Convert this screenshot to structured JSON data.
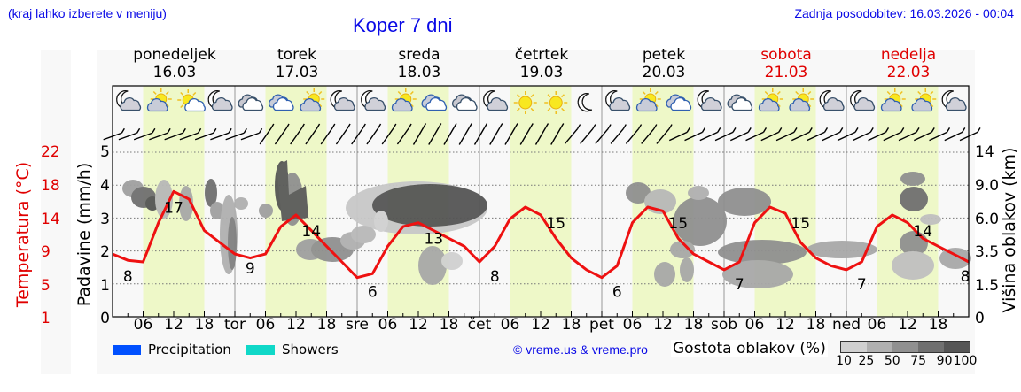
{
  "header": {
    "hint": "(kraj lahko izberete v meniju)",
    "title": "Koper 7 dni",
    "last_update": "Zadnja posodobitev: 16.03.2026 - 00:04"
  },
  "days": [
    {
      "name": "ponedeljek",
      "date": "16.03",
      "weekend": false
    },
    {
      "name": "torek",
      "date": "17.03",
      "weekend": false
    },
    {
      "name": "sreda",
      "date": "18.03",
      "weekend": false
    },
    {
      "name": "četrtek",
      "date": "19.03",
      "weekend": false
    },
    {
      "name": "petek",
      "date": "20.03",
      "weekend": false
    },
    {
      "name": "sobota",
      "date": "21.03",
      "weekend": true
    },
    {
      "name": "nedelja",
      "date": "22.03",
      "weekend": true
    }
  ],
  "icons": [
    "moon-cloud",
    "sun-cloud",
    "sun-small-cloud",
    "moon-cloud",
    "clouds",
    "clouds-blue",
    "sun-cloud",
    "moon-cloud",
    "moon-cloud",
    "sun-cloud",
    "clouds-blue",
    "clouds",
    "moon-cloud",
    "sun",
    "sun",
    "moon",
    "moon-cloud",
    "sun-cloud",
    "clouds-blue",
    "moon-cloud",
    "clouds",
    "sun-cloud",
    "sun-cloud",
    "moon-cloud",
    "moon-cloud",
    "sun-cloud",
    "sun-cloud",
    "moon-cloud"
  ],
  "axes": {
    "temp_label": "Temperatura (°C)",
    "temp_ticks": [
      "22",
      "18",
      "14",
      "9",
      "5",
      "1"
    ],
    "precip_label": "Padavine (mm/h)",
    "precip_ticks": [
      "5",
      "4",
      "3",
      "2",
      "1",
      "0"
    ],
    "cloud_label": "Višina oblakov (km)",
    "cloud_ticks": [
      "14",
      "9.0",
      "6.0",
      "3.5",
      "1.5",
      "0"
    ],
    "x_ticks": [
      "06",
      "12",
      "18",
      "tor",
      "06",
      "12",
      "18",
      "sre",
      "06",
      "12",
      "18",
      "čet",
      "06",
      "12",
      "18",
      "pet",
      "06",
      "12",
      "18",
      "sob",
      "06",
      "12",
      "18",
      "ned",
      "06",
      "12",
      "18"
    ]
  },
  "legend": {
    "precipitation": {
      "label": "Precipitation",
      "color": "#0050ff"
    },
    "showers": {
      "label": "Showers",
      "color": "#10d8c8"
    },
    "copyright": "© vreme.us & vreme.pro",
    "density_title": "Gostota oblakov (%)",
    "density_ticks": [
      "10",
      "25",
      "50",
      "75",
      "90",
      "100"
    ],
    "density_colors": [
      "#d0d0d0",
      "#b0b0b0",
      "#909090",
      "#707070",
      "#555555"
    ]
  },
  "colors": {
    "temperature": "#ee1111",
    "daytime_band": "#eef8c8",
    "plot_bg": "#f8f8f8"
  },
  "chart_data": {
    "type": "line",
    "title": "Koper 7 dni",
    "xlabel": "",
    "ylabel": "Padavine (mm/h)",
    "ylim": [
      0,
      5
    ],
    "x_range": [
      "16.03 00:00",
      "23.03 00:00"
    ],
    "series": [
      {
        "name": "Temperatura (°C)",
        "axis": "left-red",
        "x_hours": [
          0,
          3,
          6,
          9,
          12,
          15,
          18,
          21,
          24,
          27,
          30,
          33,
          36,
          39,
          42,
          45,
          48,
          51,
          54,
          57,
          60,
          63,
          66,
          69,
          72,
          75,
          78,
          81,
          84,
          87,
          90,
          93,
          96,
          99,
          102,
          105,
          108,
          111,
          114,
          117,
          120,
          123,
          126,
          129,
          132,
          135,
          138,
          141,
          144,
          147,
          150,
          153,
          156,
          159,
          162,
          165,
          168
        ],
        "values": [
          9,
          8.2,
          8,
          13,
          17,
          16,
          12,
          10.5,
          9,
          8.5,
          9,
          12.5,
          14,
          12,
          10,
          8,
          6,
          6.5,
          10,
          12.5,
          13,
          12,
          11,
          10,
          8,
          10,
          13.5,
          15,
          14,
          11,
          8.5,
          7,
          6,
          7.5,
          13,
          15,
          14.5,
          11,
          9,
          8,
          7,
          8,
          13,
          15,
          14.2,
          10.5,
          8.5,
          7.5,
          7,
          8,
          12.5,
          14,
          13,
          11,
          10,
          9,
          8
        ]
      },
      {
        "name": "Temperature labels",
        "annotations": [
          {
            "hour": 3,
            "value": 8,
            "type": "min"
          },
          {
            "hour": 12,
            "value": 17,
            "type": "max"
          },
          {
            "hour": 27,
            "value": 9,
            "type": "min"
          },
          {
            "hour": 39,
            "value": 14,
            "type": "max"
          },
          {
            "hour": 51,
            "value": 6,
            "type": "min"
          },
          {
            "hour": 63,
            "value": 13,
            "type": "max"
          },
          {
            "hour": 75,
            "value": 8,
            "type": "min"
          },
          {
            "hour": 87,
            "value": 15,
            "type": "max"
          },
          {
            "hour": 99,
            "value": 6,
            "type": "min"
          },
          {
            "hour": 111,
            "value": 15,
            "type": "max"
          },
          {
            "hour": 123,
            "value": 7,
            "type": "min"
          },
          {
            "hour": 135,
            "value": 15,
            "type": "max"
          },
          {
            "hour": 147,
            "value": 7,
            "type": "min"
          },
          {
            "hour": 159,
            "value": 14,
            "type": "max"
          },
          {
            "hour": 168,
            "value": 8,
            "type": "end"
          }
        ]
      },
      {
        "name": "Precipitation",
        "values": []
      },
      {
        "name": "Showers",
        "values": []
      }
    ],
    "cloud_density_blobs": "grayscale contours (10–100%) plotted against cloud height 0–14 km",
    "grid": true,
    "legend_position": "bottom"
  }
}
